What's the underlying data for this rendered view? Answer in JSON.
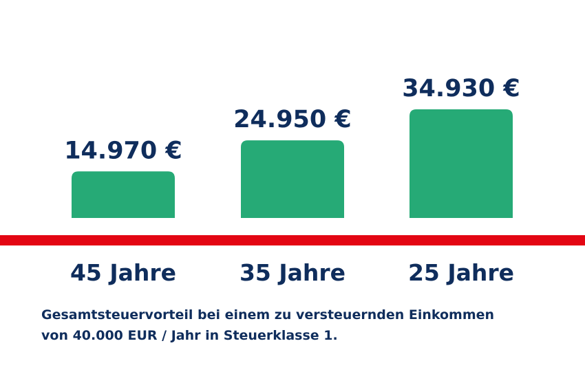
{
  "chart_data": {
    "type": "bar",
    "categories": [
      "45 Jahre",
      "35 Jahre",
      "25 Jahre"
    ],
    "values": [
      14970,
      24950,
      34930
    ],
    "value_labels": [
      "14.970 €",
      "24.950 €",
      "34.930 €"
    ],
    "title": "",
    "xlabel": "",
    "ylabel": "",
    "grid": false,
    "legend": "none"
  },
  "caption": {
    "line1": "Gesamtsteuervorteil bei einem zu versteuernden Einkommen",
    "line2": "von 40.000 EUR / Jahr in Steuerklasse 1."
  },
  "colors": {
    "bar": "#26aa76",
    "baseline": "#e30613",
    "text": "#0f2d5c"
  }
}
